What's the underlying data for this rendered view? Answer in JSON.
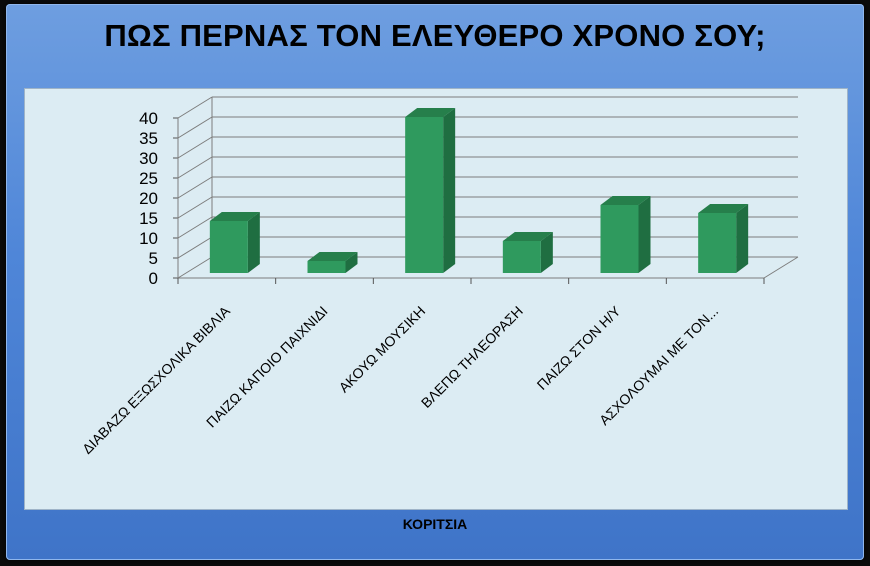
{
  "chart_data": {
    "type": "bar",
    "title": "ΠΩΣ ΠΕΡΝΑΣ ΤΟΝ ΕΛΕΥΘΕΡΟ ΧΡΟΝΟ ΣΟΥ;",
    "xlabel": "ΚΟΡΙΤΣΙΑ",
    "ylabel": "",
    "categories": [
      "ΔΙΑΒΑΖΩ ΕΞΩΣΧΟΛΙΚΑ ΒΙΒΛΙΑ",
      "ΠΑΙΖΩ ΚΑΠΟΙΟ ΠΑΙΧΝΙΔΙ",
      "ΑΚΟΥΩ ΜΟΥΣΙΚΗ",
      "ΒΛΕΠΩ ΤΗΛΕΟΡΑΣΗ",
      "ΠΑΙΖΩ ΣΤΟΝ Η/Υ",
      "ΑΣΧΟΛΟΥΜΑΙ ΜΕ ΤΟΝ..."
    ],
    "values": [
      13,
      3,
      39,
      8,
      17,
      15
    ],
    "ylim": [
      0,
      40
    ],
    "yticks": [
      0,
      5,
      10,
      15,
      20,
      25,
      30,
      35,
      40
    ],
    "grid": true,
    "bar_color": "#2f9a5e"
  }
}
